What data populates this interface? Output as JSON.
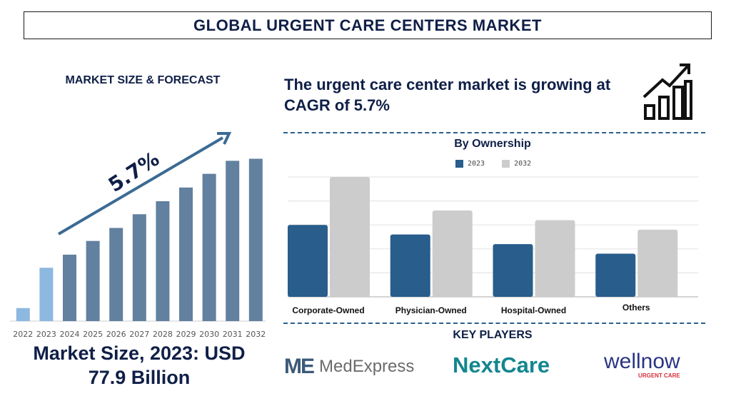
{
  "title": "GLOBAL URGENT CARE CENTERS MARKET",
  "left": {
    "heading": "MARKET SIZE & FORECAST",
    "cagr_label": "5.7%",
    "market_size_line1": "Market Size, 2023: USD",
    "market_size_line2": "77.9 Billion"
  },
  "right": {
    "headline": "The urgent care center market is growing at CAGR of 5.7%",
    "growth_icon": "bar-chart-growth-arrow-icon",
    "key_players_heading": "KEY PLAYERS",
    "key_players": [
      "MedExpress",
      "NextCare",
      "wellnow"
    ],
    "wellnow_tagline": "URGENT CARE"
  },
  "chart_data": [
    {
      "type": "bar",
      "categories": [
        "2022",
        "2023",
        "2024",
        "2025",
        "2026",
        "2027",
        "2028",
        "2029",
        "2030",
        "2031",
        "2032"
      ],
      "values": [
        19,
        77.9,
        97,
        117,
        136,
        156,
        175,
        195,
        215,
        234,
        237
      ],
      "annotation": "5.7%",
      "colors": {
        "historic": "#8db8e0",
        "forecast": "#62809f",
        "arrow": "#3b6b93"
      },
      "grid": false
    },
    {
      "type": "bar",
      "title": "By Ownership",
      "categories": [
        "Corporate-Owned",
        "Physician-Owned",
        "Hospital-Owned",
        "Others"
      ],
      "series": [
        {
          "name": "2023",
          "values": [
            3.0,
            2.6,
            2.2,
            1.8
          ],
          "color": "#285d8c"
        },
        {
          "name": "2032",
          "values": [
            5.0,
            3.6,
            3.2,
            2.8
          ],
          "color": "#cccccc"
        }
      ],
      "ylim": [
        0,
        5
      ],
      "grid": true,
      "legend": "top"
    }
  ]
}
